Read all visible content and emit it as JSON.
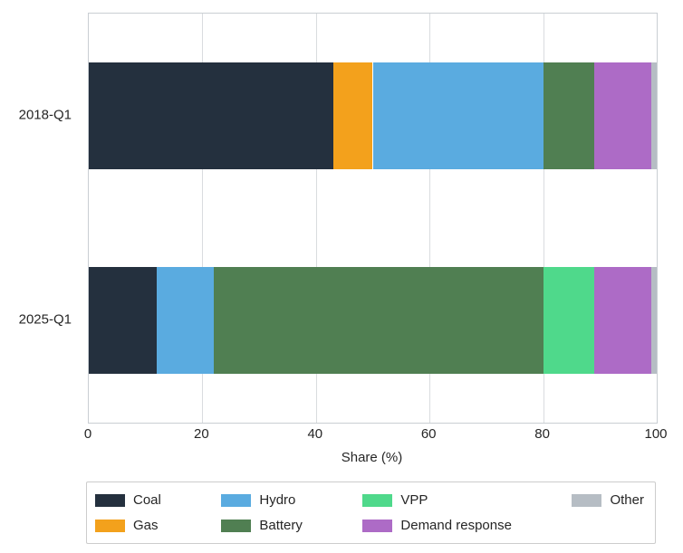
{
  "chart_data": {
    "type": "bar",
    "orientation": "horizontal",
    "stacked": true,
    "title": "",
    "xlabel": "Share (%)",
    "ylabel": "",
    "xlim": [
      0,
      100
    ],
    "xticks": [
      0,
      20,
      40,
      60,
      80,
      100
    ],
    "grid": true,
    "legend_position": "bottom",
    "categories": [
      "2018-Q1",
      "2025-Q1"
    ],
    "series": [
      {
        "name": "Coal",
        "color": "#24303e",
        "values": [
          43,
          12
        ]
      },
      {
        "name": "Gas",
        "color": "#f3a11c",
        "values": [
          7,
          0
        ]
      },
      {
        "name": "Hydro",
        "color": "#5aabe0",
        "values": [
          30,
          10
        ]
      },
      {
        "name": "Battery",
        "color": "#507f52",
        "values": [
          9,
          58
        ]
      },
      {
        "name": "VPP",
        "color": "#4fd98b",
        "values": [
          0,
          9
        ]
      },
      {
        "name": "Demand response",
        "color": "#ad6bc6",
        "values": [
          10,
          10
        ]
      },
      {
        "name": "Other",
        "color": "#b6bdc4",
        "values": [
          1,
          1
        ]
      }
    ]
  },
  "colors": {
    "axis_border": "#c9ced3",
    "gridline": "#d9dcdf",
    "text": "#262626",
    "legend_border": "#cccccc",
    "background": "#ffffff"
  }
}
